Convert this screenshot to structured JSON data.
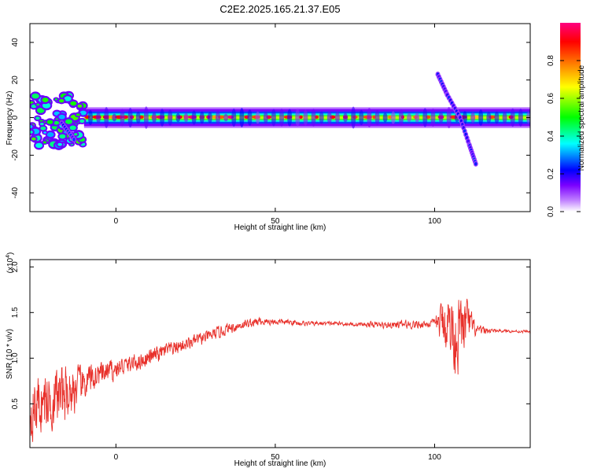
{
  "title": "C2E2.2025.165.21.37.E05",
  "chart_data": [
    {
      "type": "heatmap",
      "xlabel": "Height of straight line (km)",
      "ylabel": "Frequency (Hz)",
      "xlim": [
        -27,
        130
      ],
      "ylim": [
        -50,
        50
      ],
      "xticks": [
        0,
        50,
        100
      ],
      "yticks": [
        -40,
        -20,
        0,
        20,
        40
      ],
      "grid": false,
      "colorbar": {
        "label": "Normalized spectral amplitude",
        "range": [
          0,
          1
        ],
        "ticks": [
          "0.0",
          "0.2",
          "0.4",
          "0.6",
          "0.8"
        ],
        "colormap": [
          "#ffffff",
          "#c080ff",
          "#7a00ff",
          "#0000ff",
          "#00ffff",
          "#00ff00",
          "#ffff00",
          "#ff8000",
          "#ff0000",
          "#ff0080"
        ]
      },
      "features": [
        {
          "kind": "band",
          "x_range": [
            -10,
            130
          ],
          "freq_center": 0,
          "freq_halfwidth": 5,
          "peak_amplitude": 1.0
        },
        {
          "kind": "scatter_cluster",
          "x_range": [
            -27,
            -10
          ],
          "freq_range": [
            -15,
            12
          ]
        },
        {
          "kind": "dispersive_streak",
          "x": [
            101,
            104,
            108,
            111,
            113
          ],
          "freq": [
            23,
            12,
            0,
            -15,
            -25
          ]
        },
        {
          "kind": "dispersive_streak",
          "x": [
            -17,
            -13
          ],
          "freq": [
            -3,
            -12
          ]
        }
      ]
    },
    {
      "type": "line",
      "xlabel": "Height of straight line (km)",
      "ylabel": "SNR (10 * v/v)",
      "y_multiplier": "(x10",
      "y_multiplier_exp": "4",
      "xlim": [
        -27,
        130
      ],
      "ylim": [
        0.02,
        2.08
      ],
      "xticks": [
        0,
        50,
        100
      ],
      "yticks": [
        "0.5",
        "1.0",
        "1.5",
        "2.0"
      ],
      "ytick_values": [
        0.5,
        1.0,
        1.5,
        2.0
      ],
      "grid": false,
      "series": [
        {
          "color": "#e8302a",
          "x": [
            -27,
            -20,
            -15,
            -10,
            -5,
            0,
            5,
            10,
            15,
            20,
            25,
            30,
            35,
            40,
            45,
            50,
            55,
            60,
            65,
            70,
            75,
            80,
            85,
            90,
            95,
            100,
            103,
            105,
            107,
            110,
            113,
            120,
            130
          ],
          "y": [
            0.45,
            0.55,
            0.62,
            0.72,
            0.82,
            0.88,
            0.94,
            1.0,
            1.07,
            1.13,
            1.19,
            1.25,
            1.32,
            1.37,
            1.4,
            1.4,
            1.39,
            1.38,
            1.38,
            1.38,
            1.37,
            1.37,
            1.36,
            1.37,
            1.37,
            1.38,
            1.4,
            1.35,
            1.25,
            1.4,
            1.3,
            1.3,
            1.29
          ],
          "volatility": [
            0.45,
            0.45,
            0.4,
            0.25,
            0.18,
            0.15,
            0.13,
            0.12,
            0.12,
            0.1,
            0.09,
            0.09,
            0.08,
            0.07,
            0.06,
            0.05,
            0.04,
            0.03,
            0.03,
            0.03,
            0.03,
            0.04,
            0.05,
            0.06,
            0.06,
            0.06,
            0.4,
            0.5,
            0.55,
            0.35,
            0.08,
            0.02,
            0.02
          ]
        }
      ]
    }
  ]
}
